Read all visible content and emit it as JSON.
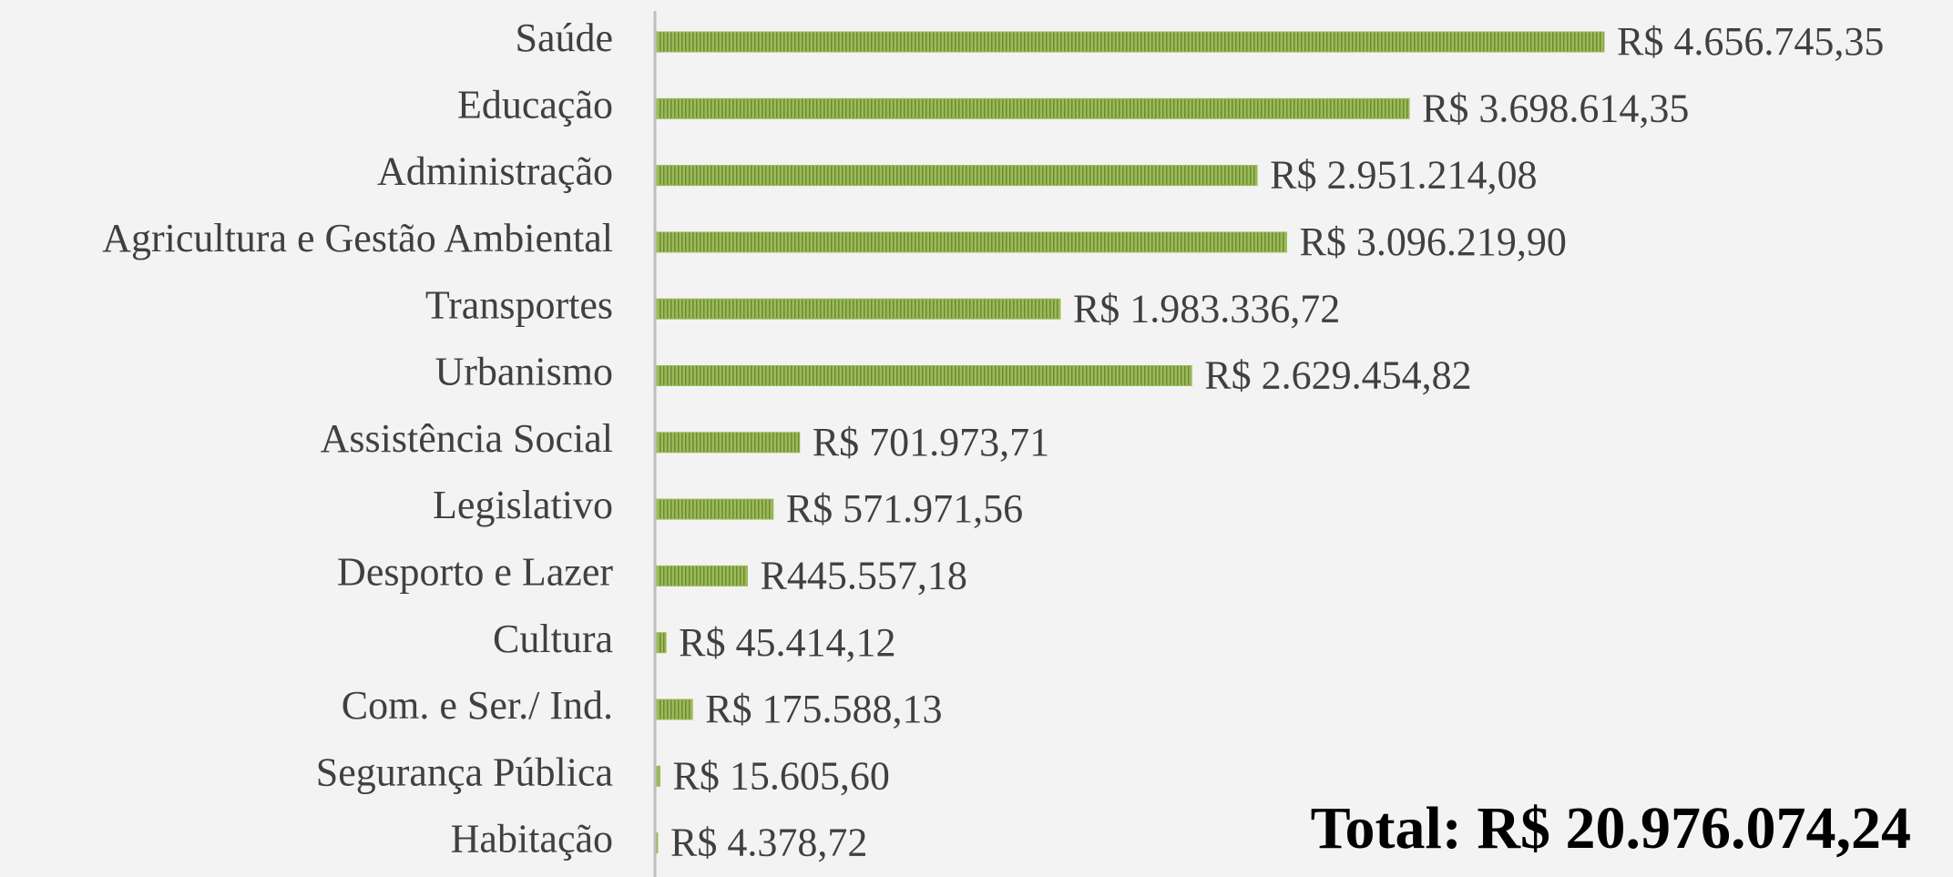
{
  "chart_data": {
    "type": "barh",
    "categories": [
      "Saúde",
      "Educação",
      "Administração",
      "Agricultura e Gestão Ambiental",
      "Transportes",
      "Urbanismo",
      "Assistência Social",
      "Legislativo",
      "Desporto e Lazer",
      "Cultura",
      "Com. e Ser./ Ind.",
      "Segurança Pública",
      "Habitação"
    ],
    "values": [
      4656745.35,
      3698614.35,
      2951214.08,
      3096219.9,
      1983336.72,
      2629454.82,
      701973.71,
      571971.56,
      445557.18,
      45414.12,
      175588.13,
      15605.6,
      4378.72
    ],
    "value_labels": [
      "R$ 4.656.745,35",
      "R$ 3.698.614,35",
      "R$ 2.951.214,08",
      "R$ 3.096.219,90",
      "R$ 1.983.336,72",
      "R$ 2.629.454,82",
      "R$ 701.973,71",
      "R$ 571.971,56",
      "R445.557,18",
      "R$ 45.414,12",
      "R$ 175.588,13",
      "R$ 15.605,60",
      "R$ 4.378,72"
    ],
    "color": "#9bbb59",
    "annotation": "Total: R$ 20.976.074,24"
  }
}
